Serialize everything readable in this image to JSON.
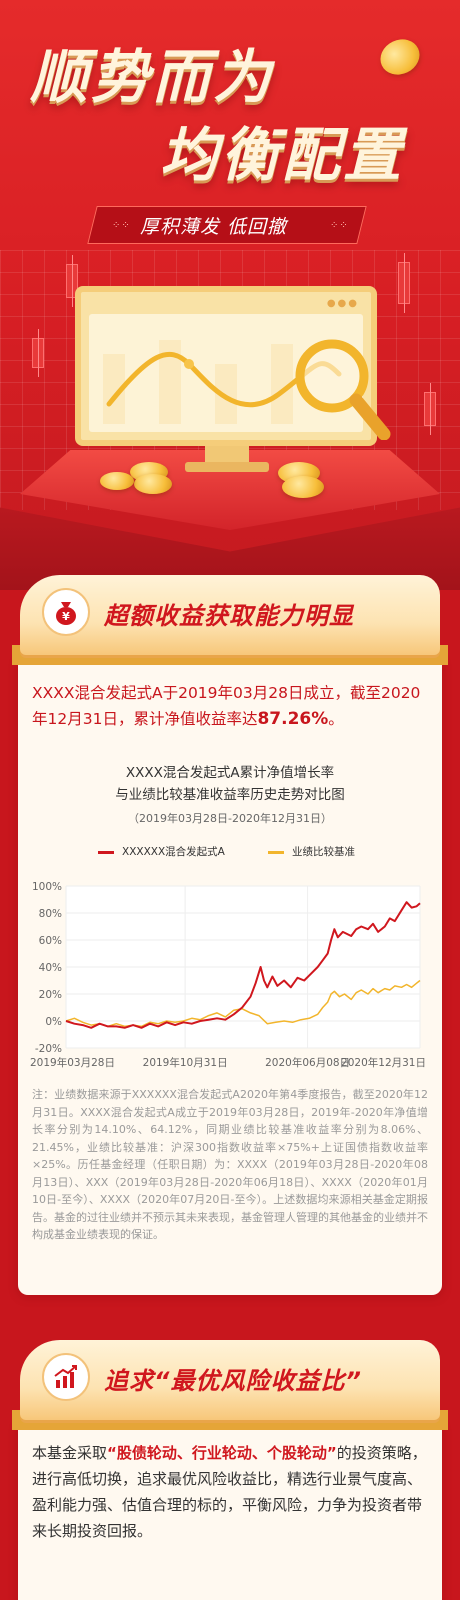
{
  "hero": {
    "title_line1": "顺势而为",
    "title_line2": "均衡配置",
    "tagline": "厚积薄发  低回撤"
  },
  "section1": {
    "heading": "超额收益获取能力明显",
    "icon": "money-bag-icon",
    "intro_part1": "XXXX混合发起式A于2019年03月28日成立，截至2020年12月31日，累计净值收益率达",
    "intro_highlight": "87.26%",
    "intro_end": "。",
    "note": "注：业绩数据来源于XXXXXX混合发起式A2020年第4季度报告，截至2020年12月31日。XXXX混合发起式A成立于2019年03月28日，2019年-2020年净值增长率分别为14.10%、64.12%，同期业绩比较基准收益率分别为8.06%、21.45%，业绩比较基准：沪深300指数收益率×75%+上证国债指数收益率×25%。历任基金经理（任职日期）为：XXXX（2019年03月28日-2020年08月13日）、XXX（2019年03月28日-2020年06月18日）、XXXX（2020年01月10日-至今）、XXXX（2020年07月20日-至今）。上述数据均来源相关基金定期报告。基金的过往业绩并不预示其未来表现，基金管理人管理的其他基金的业绩并不构成基金业绩表现的保证。"
  },
  "chart_data": {
    "type": "line",
    "title_line1": "XXXX混合发起式A累计净值增长率",
    "title_line2": "与业绩比较基准收益率历史走势对比图",
    "subtitle": "（2019年03月28日-2020年12月31日）",
    "x_ticks": [
      "2019年03月28日",
      "2019年10月31日",
      "2020年06月08日",
      "2020年12月31日"
    ],
    "y_ticks": [
      "100%",
      "80%",
      "60%",
      "40%",
      "20%",
      "0%",
      "-20%"
    ],
    "ylim": [
      -20,
      100
    ],
    "xlim": [
      0,
      21.1
    ],
    "x_tick_values": [
      0,
      7.1,
      14.4,
      21.1
    ],
    "grid": true,
    "legend_position": "top",
    "colors": {
      "fund": "#d0171e",
      "benchmark": "#f2b52c",
      "grid": "#eeeeee"
    },
    "series": [
      {
        "name": "XXXXXX混合发起式A",
        "points": [
          [
            0,
            0
          ],
          [
            0.5,
            -2
          ],
          [
            1,
            -3
          ],
          [
            1.5,
            -5
          ],
          [
            2,
            -2
          ],
          [
            2.5,
            -4
          ],
          [
            3,
            -4
          ],
          [
            3.5,
            -5
          ],
          [
            4,
            -3
          ],
          [
            4.5,
            -5
          ],
          [
            5,
            -2
          ],
          [
            5.5,
            -4
          ],
          [
            6,
            -1
          ],
          [
            6.5,
            -3
          ],
          [
            7,
            -1
          ],
          [
            7.5,
            -2
          ],
          [
            8,
            0
          ],
          [
            8.5,
            1
          ],
          [
            9,
            2
          ],
          [
            9.5,
            1
          ],
          [
            10,
            5
          ],
          [
            10.5,
            10
          ],
          [
            11,
            18
          ],
          [
            11.3,
            28
          ],
          [
            11.6,
            40
          ],
          [
            11.8,
            30
          ],
          [
            12,
            25
          ],
          [
            12.3,
            33
          ],
          [
            12.6,
            26
          ],
          [
            13,
            30
          ],
          [
            13.4,
            25
          ],
          [
            13.8,
            32
          ],
          [
            14.2,
            30
          ],
          [
            14.6,
            35
          ],
          [
            15,
            40
          ],
          [
            15.3,
            45
          ],
          [
            15.6,
            50
          ],
          [
            15.8,
            60
          ],
          [
            16,
            68
          ],
          [
            16.2,
            62
          ],
          [
            16.5,
            66
          ],
          [
            17,
            63
          ],
          [
            17.3,
            68
          ],
          [
            17.6,
            70
          ],
          [
            18,
            68
          ],
          [
            18.3,
            72
          ],
          [
            18.6,
            66
          ],
          [
            19,
            70
          ],
          [
            19.3,
            76
          ],
          [
            19.6,
            74
          ],
          [
            20,
            82
          ],
          [
            20.3,
            88
          ],
          [
            20.6,
            84
          ],
          [
            20.9,
            85
          ],
          [
            21.1,
            87.26
          ]
        ]
      },
      {
        "name": "业绩比较基准",
        "points": [
          [
            0,
            0
          ],
          [
            0.5,
            2
          ],
          [
            1,
            -1
          ],
          [
            1.5,
            -3
          ],
          [
            2,
            -2
          ],
          [
            2.5,
            -4
          ],
          [
            3,
            -2
          ],
          [
            3.5,
            -4
          ],
          [
            4,
            -3
          ],
          [
            4.5,
            -4
          ],
          [
            5,
            -1
          ],
          [
            5.5,
            -2
          ],
          [
            6,
            0
          ],
          [
            6.5,
            -1
          ],
          [
            7,
            0
          ],
          [
            7.5,
            2
          ],
          [
            8,
            1
          ],
          [
            8.5,
            4
          ],
          [
            9,
            6
          ],
          [
            9.5,
            3
          ],
          [
            10,
            8
          ],
          [
            10.5,
            9
          ],
          [
            11,
            6
          ],
          [
            11.5,
            4
          ],
          [
            12,
            -2
          ],
          [
            12.5,
            -1
          ],
          [
            13,
            0
          ],
          [
            13.5,
            -1
          ],
          [
            14,
            1
          ],
          [
            14.5,
            2
          ],
          [
            15,
            5
          ],
          [
            15.3,
            10
          ],
          [
            15.6,
            14
          ],
          [
            15.8,
            20
          ],
          [
            16,
            22
          ],
          [
            16.3,
            18
          ],
          [
            16.6,
            20
          ],
          [
            17,
            16
          ],
          [
            17.3,
            21
          ],
          [
            17.6,
            23
          ],
          [
            18,
            20
          ],
          [
            18.3,
            24
          ],
          [
            18.6,
            21
          ],
          [
            19,
            24
          ],
          [
            19.3,
            23
          ],
          [
            19.6,
            26
          ],
          [
            20,
            25
          ],
          [
            20.3,
            27
          ],
          [
            20.6,
            25
          ],
          [
            20.9,
            28
          ],
          [
            21.1,
            30
          ]
        ]
      }
    ]
  },
  "section2": {
    "heading": "追求“最优风险收益比”",
    "icon": "bar-chart-rising-icon",
    "body_part1": "本基金采取",
    "body_highlight": "“股债轮动、行业轮动、个股轮动”",
    "body_part2": "的投资策略，进行高低切换，追求最优风险收益比，精选行业景气度高、盈利能力强、估值合理的标的，平衡风险，力争为投资者带来长期投资回报。"
  }
}
